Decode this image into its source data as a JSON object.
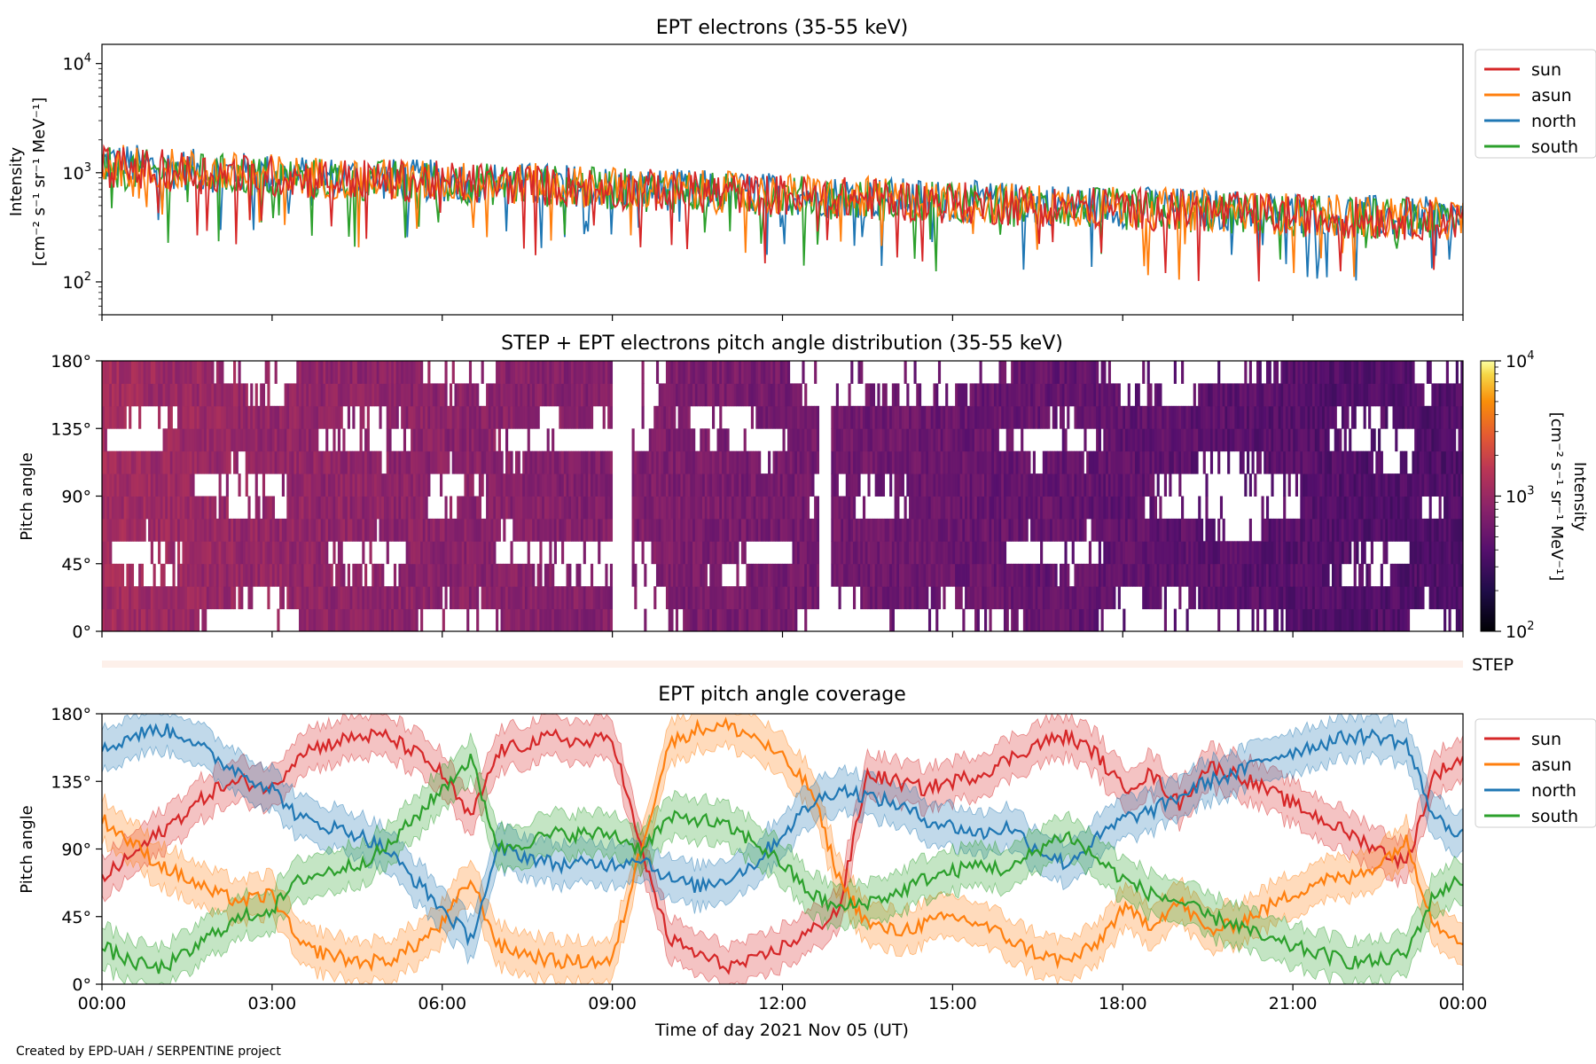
{
  "figure": {
    "credit": "Created by EPD-UAH / SERPENTINE project",
    "xlabel": "Time of day 2021 Nov 05 (UT)",
    "xticks": [
      "00:00",
      "03:00",
      "06:00",
      "09:00",
      "12:00",
      "15:00",
      "18:00",
      "21:00",
      "00:00"
    ],
    "step_label": "STEP"
  },
  "chart_data": [
    {
      "type": "line",
      "title": "EPT electrons (35-55 keV)",
      "ylabel_line1": "Intensity",
      "ylabel_line2": "[cm⁻² s⁻¹ sr⁻¹ MeV⁻¹]",
      "yscale": "log",
      "ylim": [
        50,
        15000
      ],
      "yticks": [
        {
          "base": "10",
          "exp": "2",
          "value": 100
        },
        {
          "base": "10",
          "exp": "3",
          "value": 1000
        },
        {
          "base": "10",
          "exp": "4",
          "value": 10000
        }
      ],
      "x_hours": [
        0,
        1,
        2,
        3,
        4,
        5,
        6,
        7,
        8,
        9,
        10,
        11,
        12,
        13,
        14,
        15,
        16,
        17,
        18,
        19,
        20,
        21,
        22,
        23,
        24
      ],
      "series": [
        {
          "name": "sun",
          "color": "#d62728",
          "values": [
            1150,
            1050,
            980,
            930,
            880,
            850,
            820,
            790,
            760,
            720,
            680,
            650,
            620,
            590,
            560,
            530,
            510,
            490,
            470,
            450,
            430,
            410,
            390,
            380,
            370
          ]
        },
        {
          "name": "asun",
          "color": "#ff7f0e",
          "values": [
            1200,
            1100,
            1000,
            950,
            900,
            860,
            830,
            800,
            770,
            730,
            690,
            660,
            630,
            600,
            570,
            540,
            520,
            500,
            480,
            460,
            440,
            420,
            400,
            385,
            375
          ]
        },
        {
          "name": "north",
          "color": "#1f77b4",
          "values": [
            1250,
            1120,
            1020,
            960,
            910,
            870,
            840,
            810,
            780,
            740,
            700,
            670,
            640,
            610,
            580,
            550,
            530,
            510,
            490,
            470,
            450,
            430,
            410,
            390,
            380
          ]
        },
        {
          "name": "south",
          "color": "#2ca02c",
          "values": [
            1100,
            1030,
            960,
            920,
            870,
            840,
            810,
            780,
            750,
            710,
            670,
            640,
            610,
            580,
            550,
            520,
            500,
            480,
            460,
            440,
            420,
            400,
            385,
            375,
            365
          ]
        }
      ],
      "legend": "right-outside"
    },
    {
      "type": "heatmap",
      "title": "STEP + EPT electrons pitch angle distribution (35-55 keV)",
      "ylabel": "Pitch angle",
      "yticks": [
        "0°",
        "45°",
        "90°",
        "135°",
        "180°"
      ],
      "ylim": [
        0,
        180
      ],
      "colorbar": {
        "label_line1": "Intensity",
        "label_line2": "[cm⁻² s⁻¹ sr⁻¹ MeV⁻¹]",
        "scale": "log",
        "range": [
          100,
          10000
        ],
        "ticks": [
          {
            "base": "10",
            "exp": "2"
          },
          {
            "base": "10",
            "exp": "3"
          },
          {
            "base": "10",
            "exp": "4"
          }
        ],
        "colormap": "inferno"
      }
    },
    {
      "type": "line",
      "title": "EPT pitch angle coverage",
      "ylabel": "Pitch angle",
      "yticks": [
        "0°",
        "45°",
        "90°",
        "135°",
        "180°"
      ],
      "ylim": [
        0,
        180
      ],
      "x_hours": [
        0,
        0.5,
        1,
        1.5,
        2,
        2.5,
        3,
        3.5,
        4,
        4.5,
        5,
        5.5,
        6,
        6.5,
        7,
        7.5,
        8,
        8.5,
        9,
        9.5,
        10,
        10.5,
        11,
        11.5,
        12,
        12.5,
        13,
        13.5,
        14,
        14.5,
        15,
        15.5,
        16,
        16.5,
        17,
        17.5,
        18,
        18.5,
        19,
        19.5,
        20,
        20.5,
        21,
        21.5,
        22,
        22.5,
        23,
        23.5,
        24
      ],
      "series": [
        {
          "name": "sun",
          "color": "#d62728",
          "values": [
            70,
            85,
            100,
            115,
            130,
            135,
            130,
            155,
            160,
            165,
            165,
            155,
            140,
            110,
            155,
            160,
            165,
            160,
            165,
            90,
            30,
            20,
            12,
            15,
            25,
            35,
            50,
            140,
            135,
            130,
            135,
            140,
            150,
            160,
            165,
            155,
            130,
            140,
            120,
            145,
            140,
            130,
            120,
            110,
            100,
            90,
            80,
            140,
            150
          ]
        },
        {
          "name": "asun",
          "color": "#ff7f0e",
          "values": [
            110,
            95,
            80,
            70,
            60,
            55,
            60,
            25,
            20,
            15,
            15,
            25,
            40,
            70,
            25,
            20,
            15,
            15,
            15,
            90,
            160,
            170,
            172,
            165,
            150,
            130,
            70,
            40,
            35,
            40,
            45,
            40,
            30,
            20,
            15,
            25,
            50,
            40,
            55,
            35,
            40,
            50,
            60,
            70,
            70,
            80,
            95,
            40,
            30
          ]
        },
        {
          "name": "north",
          "color": "#1f77b4",
          "values": [
            155,
            165,
            170,
            165,
            150,
            140,
            130,
            110,
            105,
            100,
            90,
            70,
            50,
            30,
            90,
            85,
            80,
            80,
            80,
            85,
            70,
            65,
            70,
            80,
            100,
            120,
            130,
            125,
            120,
            110,
            105,
            100,
            105,
            90,
            80,
            95,
            110,
            115,
            125,
            135,
            140,
            150,
            155,
            160,
            165,
            165,
            160,
            110,
            100
          ]
        },
        {
          "name": "south",
          "color": "#2ca02c",
          "values": [
            25,
            15,
            10,
            20,
            35,
            45,
            50,
            70,
            75,
            80,
            90,
            110,
            130,
            150,
            90,
            95,
            100,
            100,
            100,
            90,
            110,
            110,
            105,
            95,
            80,
            60,
            50,
            55,
            60,
            70,
            75,
            80,
            75,
            90,
            100,
            85,
            70,
            60,
            55,
            45,
            40,
            30,
            25,
            20,
            15,
            15,
            20,
            60,
            70
          ]
        }
      ],
      "legend": "right-outside"
    }
  ]
}
